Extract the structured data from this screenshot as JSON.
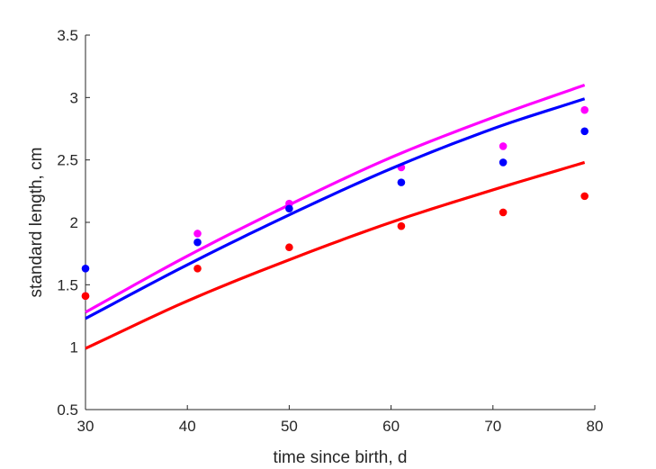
{
  "chart_data": {
    "type": "line",
    "xlabel": "time since birth, d",
    "ylabel": "standard length, cm",
    "xlim": [
      30,
      80
    ],
    "ylim": [
      0.5,
      3.5
    ],
    "x_ticks": [
      "30",
      "40",
      "50",
      "60",
      "70",
      "80"
    ],
    "y_ticks": [
      "0.5",
      "1",
      "1.5",
      "2",
      "2.5",
      "3",
      "3.5"
    ],
    "grid": false,
    "legend": "none",
    "series": [
      {
        "color": "#ff00ff",
        "line": {
          "x": [
            30,
            40,
            50,
            60,
            70,
            79
          ],
          "y": [
            1.28,
            1.73,
            2.14,
            2.52,
            2.84,
            3.1
          ]
        },
        "points": {
          "x": [
            30,
            41,
            50,
            61,
            71,
            79
          ],
          "y": [
            1.41,
            1.91,
            2.15,
            2.44,
            2.61,
            2.9
          ]
        }
      },
      {
        "color": "#0000ff",
        "line": {
          "x": [
            30,
            40,
            50,
            60,
            70,
            79
          ],
          "y": [
            1.23,
            1.66,
            2.06,
            2.43,
            2.75,
            2.99
          ]
        },
        "points": {
          "x": [
            30,
            41,
            50,
            61,
            71,
            79
          ],
          "y": [
            1.63,
            1.84,
            2.11,
            2.32,
            2.48,
            2.73
          ]
        }
      },
      {
        "color": "#ff0000",
        "line": {
          "x": [
            30,
            40,
            50,
            60,
            70,
            79
          ],
          "y": [
            0.99,
            1.37,
            1.7,
            2.0,
            2.26,
            2.48
          ]
        },
        "points": {
          "x": [
            30,
            41,
            50,
            61,
            71,
            79
          ],
          "y": [
            1.41,
            1.63,
            1.8,
            1.97,
            2.08,
            2.21
          ]
        }
      }
    ]
  }
}
